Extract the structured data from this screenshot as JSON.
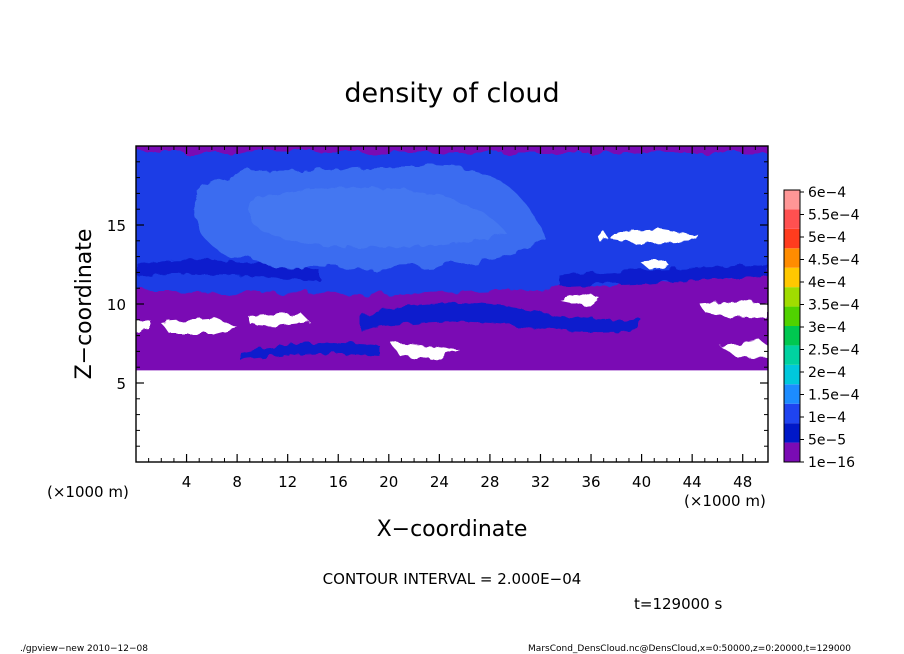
{
  "chart_data": {
    "type": "heatmap",
    "title": "density of cloud",
    "xlabel": "X−coordinate",
    "ylabel": "Z−coordinate",
    "x_unit": "(×1000 m)",
    "y_unit": "(×1000 m)",
    "xlim": [
      0,
      50
    ],
    "ylim": [
      0,
      20
    ],
    "x_ticks": [
      "4",
      "8",
      "12",
      "16",
      "20",
      "24",
      "28",
      "32",
      "36",
      "40",
      "44",
      "48"
    ],
    "x_tick_values": [
      4,
      8,
      12,
      16,
      20,
      24,
      28,
      32,
      36,
      40,
      44,
      48
    ],
    "y_ticks": [
      "5",
      "10",
      "15"
    ],
    "y_tick_values": [
      5,
      10,
      15
    ],
    "colorbar": {
      "labels": [
        "1e−16",
        "5e−5",
        "1e−4",
        "1.5e−4",
        "2e−4",
        "2.5e−4",
        "3e−4",
        "3.5e−4",
        "4e−4",
        "4.5e−4",
        "5e−4",
        "5.5e−4",
        "6e−4"
      ],
      "colors": [
        "#7a0bb4",
        "#0018c8",
        "#1f44f0",
        "#1c8cff",
        "#00c8dc",
        "#00d2a0",
        "#00c850",
        "#50d200",
        "#a0dc00",
        "#ffc800",
        "#ff8c00",
        "#ff3c1e",
        "#ff5050",
        "#ff9696"
      ]
    },
    "regions": {
      "no_data_below_z": 5.8,
      "purple_band_z": [
        5.8,
        10.8
      ],
      "blue_band_z": [
        10.8,
        20
      ],
      "light_blue_cloud_x": [
        4,
        34
      ],
      "light_blue_cloud_z": [
        14,
        19
      ]
    },
    "contour_interval": "CONTOUR INTERVAL = 2.000E−04",
    "time": "t=129000 s"
  },
  "footer": {
    "left": "./gpview−new  2010−12−08",
    "right": "MarsCond_DensCloud.nc@DensCloud,x=0:50000,z=0:20000,t=129000"
  }
}
